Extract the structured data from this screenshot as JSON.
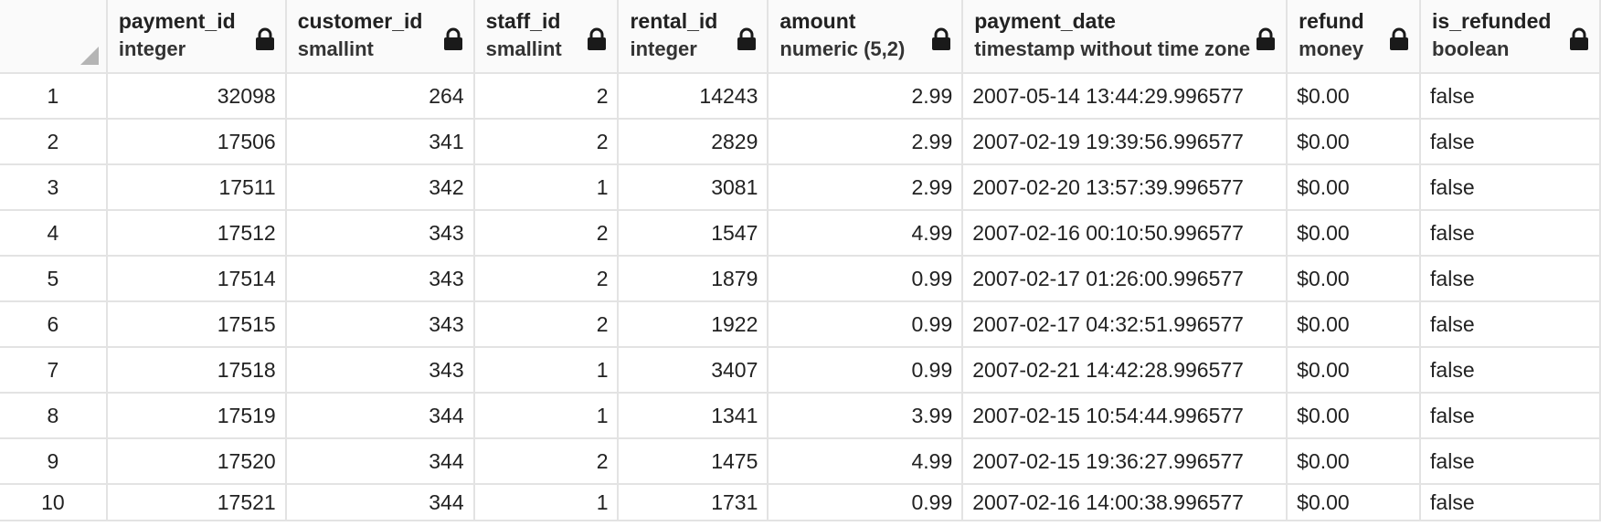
{
  "columns": [
    {
      "name": "payment_id",
      "type": "integer",
      "align": "num"
    },
    {
      "name": "customer_id",
      "type": "smallint",
      "align": "num"
    },
    {
      "name": "staff_id",
      "type": "smallint",
      "align": "num"
    },
    {
      "name": "rental_id",
      "type": "integer",
      "align": "num"
    },
    {
      "name": "amount",
      "type": "numeric (5,2)",
      "align": "num"
    },
    {
      "name": "payment_date",
      "type": "timestamp without time zone",
      "align": "txt"
    },
    {
      "name": "refund",
      "type": "money",
      "align": "txt"
    },
    {
      "name": "is_refunded",
      "type": "boolean",
      "align": "txt"
    }
  ],
  "rows": [
    {
      "num": "1",
      "cells": [
        "32098",
        "264",
        "2",
        "14243",
        "2.99",
        "2007-05-14 13:44:29.996577",
        "$0.00",
        "false"
      ]
    },
    {
      "num": "2",
      "cells": [
        "17506",
        "341",
        "2",
        "2829",
        "2.99",
        "2007-02-19 19:39:56.996577",
        "$0.00",
        "false"
      ]
    },
    {
      "num": "3",
      "cells": [
        "17511",
        "342",
        "1",
        "3081",
        "2.99",
        "2007-02-20 13:57:39.996577",
        "$0.00",
        "false"
      ]
    },
    {
      "num": "4",
      "cells": [
        "17512",
        "343",
        "2",
        "1547",
        "4.99",
        "2007-02-16 00:10:50.996577",
        "$0.00",
        "false"
      ]
    },
    {
      "num": "5",
      "cells": [
        "17514",
        "343",
        "2",
        "1879",
        "0.99",
        "2007-02-17 01:26:00.996577",
        "$0.00",
        "false"
      ]
    },
    {
      "num": "6",
      "cells": [
        "17515",
        "343",
        "2",
        "1922",
        "0.99",
        "2007-02-17 04:32:51.996577",
        "$0.00",
        "false"
      ]
    },
    {
      "num": "7",
      "cells": [
        "17518",
        "343",
        "1",
        "3407",
        "0.99",
        "2007-02-21 14:42:28.996577",
        "$0.00",
        "false"
      ]
    },
    {
      "num": "8",
      "cells": [
        "17519",
        "344",
        "1",
        "1341",
        "3.99",
        "2007-02-15 10:54:44.996577",
        "$0.00",
        "false"
      ]
    },
    {
      "num": "9",
      "cells": [
        "17520",
        "344",
        "2",
        "1475",
        "4.99",
        "2007-02-15 19:36:27.996577",
        "$0.00",
        "false"
      ]
    },
    {
      "num": "10",
      "cells": [
        "17521",
        "344",
        "1",
        "1731",
        "0.99",
        "2007-02-16 14:00:38.996577",
        "$0.00",
        "false"
      ]
    }
  ],
  "icons": {
    "column_header": "lock-icon",
    "corner": "select-all-corner-icon"
  },
  "colors": {
    "header_bg": "#fafafa",
    "grid_line": "#e3e3e3",
    "icon": "#1a1a1a"
  }
}
